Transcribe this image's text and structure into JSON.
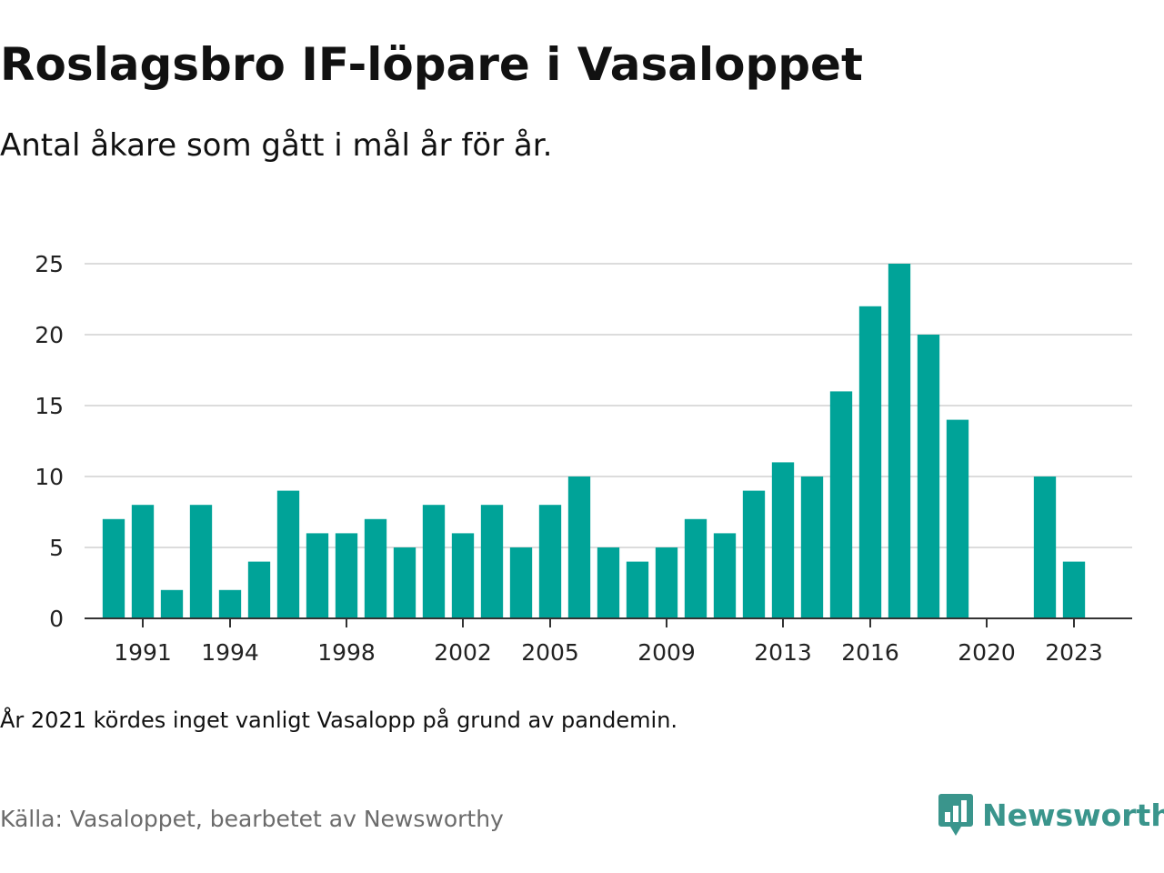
{
  "title": "Roslagsbro IF-löpare i Vasaloppet",
  "subtitle": "Antal åkare som gått i mål år för år.",
  "note": "År 2021 kördes inget vanligt Vasalopp på grund av pandemin.",
  "source": "Källa: Vasaloppet, bearbetet av Newsworthy",
  "brand": {
    "name": "Newsworthy",
    "icon": "newsworthy-chart-bubble-icon",
    "color": "#3a958c"
  },
  "chart_data": {
    "type": "bar",
    "title": "Roslagsbro IF-löpare i Vasaloppet",
    "subtitle": "Antal åkare som gått i mål år för år.",
    "xlabel": "",
    "ylabel": "",
    "bar_color": "#00a398",
    "grid": true,
    "legend": "none",
    "ylim": [
      0,
      25
    ],
    "yticks": [
      0,
      5,
      10,
      15,
      20,
      25
    ],
    "xticks": [
      1991,
      1994,
      1998,
      2002,
      2005,
      2009,
      2013,
      2016,
      2020,
      2023
    ],
    "xlim": [
      1989,
      2025
    ],
    "categories": [
      1990,
      1991,
      1992,
      1993,
      1994,
      1995,
      1996,
      1997,
      1998,
      1999,
      2000,
      2001,
      2002,
      2003,
      2004,
      2005,
      2006,
      2007,
      2008,
      2009,
      2010,
      2011,
      2012,
      2013,
      2014,
      2015,
      2016,
      2017,
      2018,
      2019,
      2022,
      2023
    ],
    "values": [
      7,
      8,
      2,
      8,
      2,
      4,
      9,
      6,
      6,
      7,
      5,
      8,
      6,
      8,
      5,
      8,
      10,
      5,
      4,
      5,
      7,
      6,
      9,
      11,
      10,
      16,
      22,
      25,
      20,
      14,
      10,
      4
    ]
  }
}
